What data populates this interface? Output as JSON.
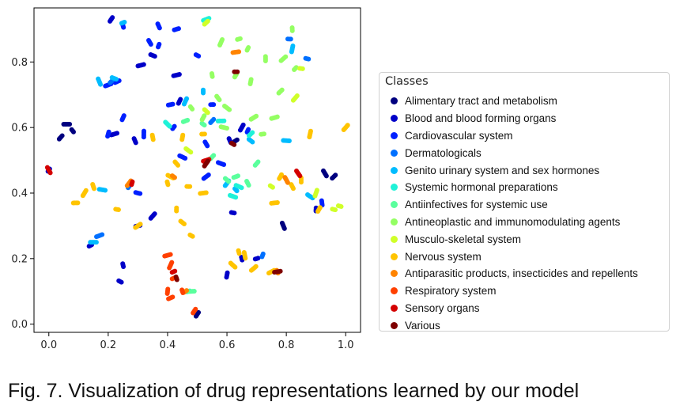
{
  "chart_data": {
    "type": "scatter",
    "xlim": [
      -0.05,
      1.05
    ],
    "ylim": [
      -0.025,
      0.965
    ],
    "x_ticks": [
      "0.0",
      "0.2",
      "0.4",
      "0.6",
      "0.8",
      "1.0"
    ],
    "x_tick_values": [
      0,
      0.2,
      0.4,
      0.6,
      0.8,
      1.0
    ],
    "y_ticks": [
      "0.0",
      "0.2",
      "0.4",
      "0.6",
      "0.8"
    ],
    "y_tick_values": [
      0,
      0.2,
      0.4,
      0.6,
      0.8
    ],
    "grid": false,
    "legend": {
      "title": "Classes",
      "placement": "right",
      "entries": [
        {
          "label": "Alimentary tract and metabolism",
          "color": "#00007f"
        },
        {
          "label": "Blood and blood forming organs",
          "color": "#0000c8"
        },
        {
          "label": "Cardiovascular system",
          "color": "#0020ff"
        },
        {
          "label": "Dermatologicals",
          "color": "#0070ff"
        },
        {
          "label": "Genito urinary system and sex hormones",
          "color": "#00bcff"
        },
        {
          "label": "Systemic hormonal preparations",
          "color": "#1ff2d8"
        },
        {
          "label": "Antiinfectives for systemic use",
          "color": "#5aff9d"
        },
        {
          "label": "Antineoplastic and immunomodulating agents",
          "color": "#94ff63"
        },
        {
          "label": "Musculo-skeletal system",
          "color": "#d0ff29"
        },
        {
          "label": "Nervous system",
          "color": "#ffc400"
        },
        {
          "label": "Antiparasitic products, insecticides and repellents",
          "color": "#ff8400"
        },
        {
          "label": "Respiratory system",
          "color": "#ff4000"
        },
        {
          "label": "Sensory organs",
          "color": "#d40000"
        },
        {
          "label": "Various",
          "color": "#7f0000"
        }
      ]
    },
    "clusters": [
      {
        "c": 0,
        "pts": [
          [
            0.06,
            0.61
          ],
          [
            0.08,
            0.59
          ],
          [
            0.04,
            0.57
          ],
          [
            0.93,
            0.46
          ],
          [
            0.96,
            0.45
          ],
          [
            0.5,
            0.03
          ],
          [
            0.63,
            0.56
          ],
          [
            0.79,
            0.3
          ]
        ]
      },
      {
        "c": 1,
        "pts": [
          [
            0.0,
            0.47
          ],
          [
            0.21,
            0.93
          ],
          [
            0.31,
            0.79
          ],
          [
            0.35,
            0.82
          ],
          [
            0.43,
            0.76
          ],
          [
            0.44,
            0.68
          ],
          [
            0.22,
            0.58
          ],
          [
            0.29,
            0.56
          ],
          [
            0.14,
            0.24
          ],
          [
            0.24,
            0.13
          ],
          [
            0.25,
            0.18
          ],
          [
            0.3,
            0.3
          ],
          [
            0.35,
            0.33
          ],
          [
            0.62,
            0.34
          ],
          [
            0.6,
            0.15
          ],
          [
            0.65,
            0.2
          ],
          [
            0.7,
            0.2
          ],
          [
            0.61,
            0.56
          ],
          [
            0.65,
            0.6
          ],
          [
            0.9,
            0.35
          ]
        ]
      },
      {
        "c": 2,
        "pts": [
          [
            0.25,
            0.91
          ],
          [
            0.37,
            0.91
          ],
          [
            0.34,
            0.86
          ],
          [
            0.37,
            0.85
          ],
          [
            0.43,
            0.9
          ],
          [
            0.23,
            0.74
          ],
          [
            0.25,
            0.63
          ],
          [
            0.32,
            0.58
          ],
          [
            0.41,
            0.67
          ],
          [
            0.42,
            0.6
          ],
          [
            0.2,
            0.58
          ],
          [
            0.53,
            0.55
          ],
          [
            0.53,
            0.45
          ],
          [
            0.58,
            0.49
          ],
          [
            0.3,
            0.4
          ],
          [
            0.5,
            0.82
          ],
          [
            0.55,
            0.67
          ],
          [
            0.67,
            0.59
          ],
          [
            0.92,
            0.37
          ],
          [
            0.45,
            0.51
          ],
          [
            0.2,
            0.73
          ]
        ]
      },
      {
        "c": 3,
        "pts": [
          [
            0.17,
            0.27
          ],
          [
            0.21,
            0.74
          ],
          [
            0.81,
            0.87
          ],
          [
            0.87,
            0.81
          ],
          [
            0.72,
            0.21
          ],
          [
            0.55,
            0.62
          ],
          [
            0.27,
            0.42
          ]
        ]
      },
      {
        "c": 4,
        "pts": [
          [
            0.25,
            0.92
          ],
          [
            0.17,
            0.74
          ],
          [
            0.22,
            0.75
          ],
          [
            0.15,
            0.25
          ],
          [
            0.46,
            0.68
          ],
          [
            0.8,
            0.56
          ],
          [
            0.88,
            0.39
          ],
          [
            0.82,
            0.84
          ],
          [
            0.63,
            0.41
          ],
          [
            0.68,
            0.56
          ],
          [
            0.18,
            0.41
          ],
          [
            0.6,
            0.43
          ],
          [
            0.52,
            0.71
          ]
        ]
      },
      {
        "c": 5,
        "pts": [
          [
            0.62,
            0.39
          ],
          [
            0.64,
            0.42
          ],
          [
            0.47,
            0.1
          ],
          [
            0.53,
            0.93
          ],
          [
            0.58,
            0.62
          ],
          [
            0.68,
            0.58
          ],
          [
            0.4,
            0.61
          ]
        ]
      },
      {
        "c": 6,
        "pts": [
          [
            0.46,
            0.62
          ],
          [
            0.6,
            0.44
          ],
          [
            0.63,
            0.45
          ],
          [
            0.67,
            0.43
          ],
          [
            0.55,
            0.51
          ],
          [
            0.7,
            0.49
          ],
          [
            0.52,
            0.61
          ],
          [
            0.48,
            0.1
          ]
        ]
      },
      {
        "c": 7,
        "pts": [
          [
            0.58,
            0.86
          ],
          [
            0.64,
            0.87
          ],
          [
            0.67,
            0.84
          ],
          [
            0.73,
            0.81
          ],
          [
            0.79,
            0.81
          ],
          [
            0.82,
            0.9
          ],
          [
            0.55,
            0.76
          ],
          [
            0.63,
            0.76
          ],
          [
            0.68,
            0.74
          ],
          [
            0.78,
            0.71
          ],
          [
            0.83,
            0.78
          ],
          [
            0.57,
            0.69
          ],
          [
            0.6,
            0.66
          ],
          [
            0.48,
            0.66
          ],
          [
            0.52,
            0.63
          ],
          [
            0.59,
            0.6
          ],
          [
            0.69,
            0.63
          ],
          [
            0.76,
            0.63
          ],
          [
            0.72,
            0.58
          ]
        ]
      },
      {
        "c": 8,
        "pts": [
          [
            0.53,
            0.92
          ],
          [
            0.83,
            0.69
          ],
          [
            0.85,
            0.78
          ],
          [
            0.96,
            0.35
          ],
          [
            0.98,
            0.36
          ],
          [
            0.9,
            0.4
          ],
          [
            0.75,
            0.42
          ],
          [
            0.47,
            0.53
          ],
          [
            0.53,
            0.65
          ]
        ]
      },
      {
        "c": 9,
        "pts": [
          [
            0.09,
            0.37
          ],
          [
            0.12,
            0.4
          ],
          [
            0.15,
            0.42
          ],
          [
            0.23,
            0.35
          ],
          [
            0.3,
            0.3
          ],
          [
            0.41,
            0.45
          ],
          [
            0.43,
            0.35
          ],
          [
            0.45,
            0.31
          ],
          [
            0.48,
            0.27
          ],
          [
            0.43,
            0.49
          ],
          [
            0.45,
            0.57
          ],
          [
            0.52,
            0.58
          ],
          [
            0.4,
            0.43
          ],
          [
            0.47,
            0.42
          ],
          [
            0.64,
            0.22
          ],
          [
            0.62,
            0.18
          ],
          [
            0.69,
            0.17
          ],
          [
            0.66,
            0.21
          ],
          [
            0.76,
            0.37
          ],
          [
            0.78,
            0.45
          ],
          [
            0.82,
            0.42
          ],
          [
            0.85,
            0.44
          ],
          [
            0.88,
            0.58
          ],
          [
            0.91,
            0.35
          ],
          [
            1.0,
            0.6
          ],
          [
            0.75,
            0.16
          ],
          [
            0.35,
            0.57
          ],
          [
            0.52,
            0.4
          ]
        ]
      },
      {
        "c": 10,
        "pts": [
          [
            0.77,
            0.16
          ],
          [
            0.8,
            0.44
          ],
          [
            0.27,
            0.43
          ],
          [
            0.63,
            0.83
          ],
          [
            0.42,
            0.45
          ],
          [
            0.46,
            0.1
          ]
        ]
      },
      {
        "c": 11,
        "pts": [
          [
            0.4,
            0.21
          ],
          [
            0.41,
            0.18
          ],
          [
            0.4,
            0.1
          ],
          [
            0.41,
            0.08
          ],
          [
            0.42,
            0.14
          ],
          [
            0.49,
            0.04
          ],
          [
            0.45,
            0.1
          ]
        ]
      },
      {
        "c": 12,
        "pts": [
          [
            0.28,
            0.43
          ],
          [
            0.53,
            0.5
          ],
          [
            0.0,
            0.47
          ],
          [
            0.42,
            0.16
          ],
          [
            0.84,
            0.46
          ]
        ]
      },
      {
        "c": 13,
        "pts": [
          [
            0.63,
            0.77
          ],
          [
            0.43,
            0.14
          ],
          [
            0.53,
            0.49
          ],
          [
            0.62,
            0.55
          ],
          [
            0.77,
            0.16
          ]
        ]
      }
    ]
  },
  "caption": "Fig. 7. Visualization of drug representations learned by our model"
}
